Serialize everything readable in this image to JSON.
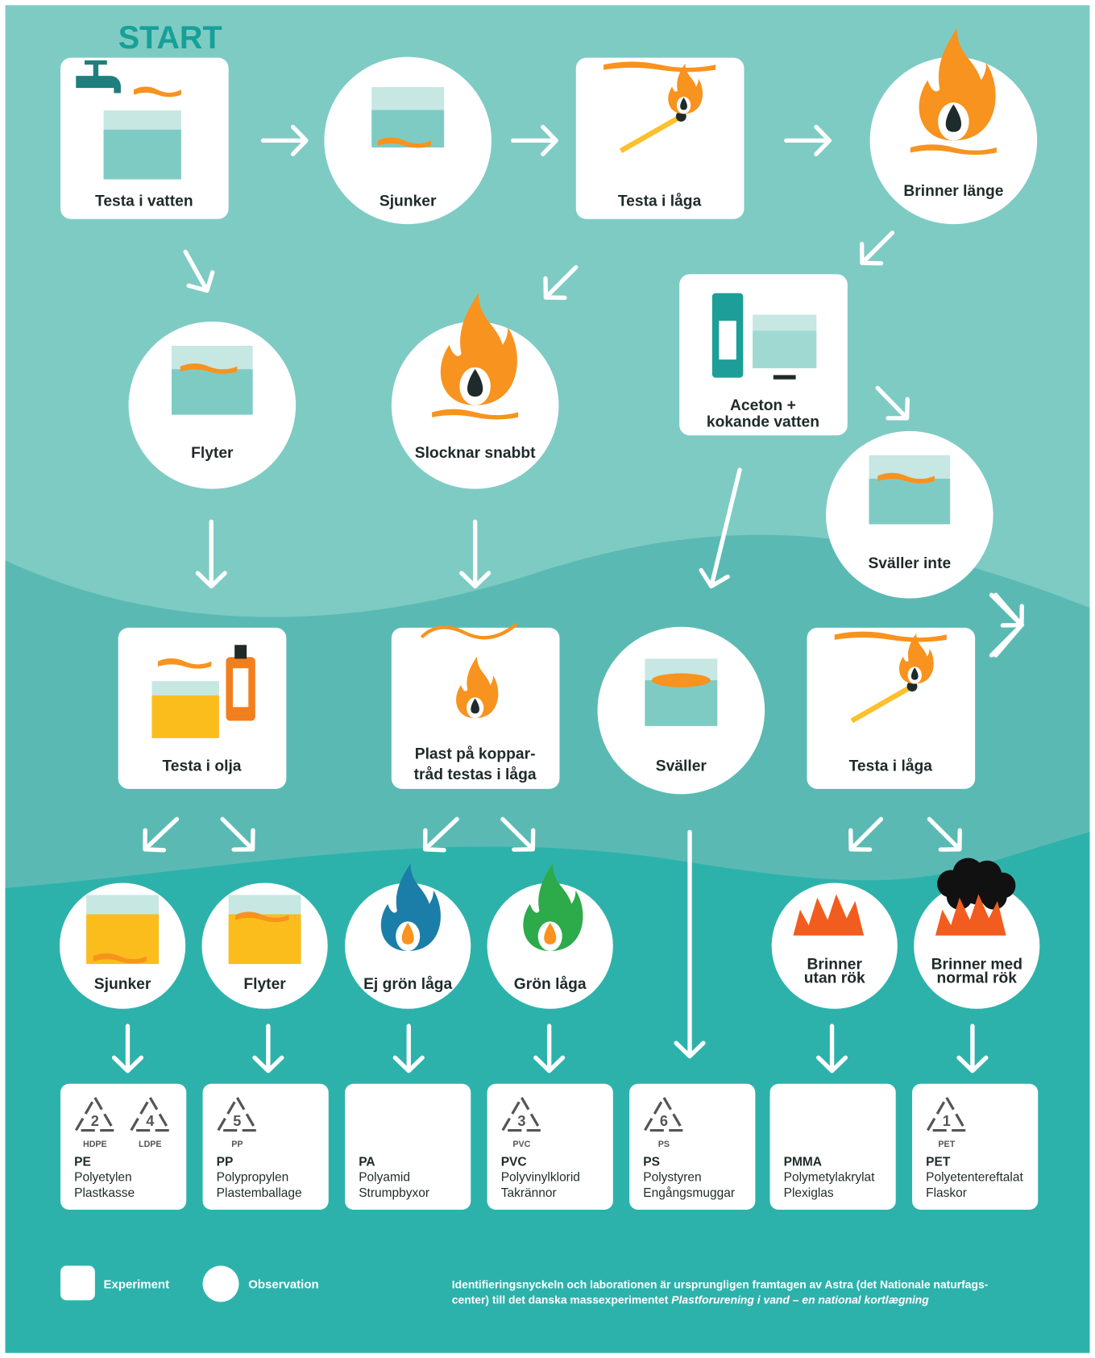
{
  "start": "START",
  "nodes": [
    {
      "label": [
        "Testa i vatten"
      ]
    },
    {
      "label": [
        "Sjunker"
      ]
    },
    {
      "label": [
        "Testa i låga"
      ]
    },
    {
      "label": [
        "Brinner länge"
      ]
    },
    {
      "label": [
        "Aceton +",
        "kokande vatten"
      ]
    },
    {
      "label": [
        "Flyter"
      ]
    },
    {
      "label": [
        "Slocknar snabbt"
      ]
    },
    {
      "label": [
        "Sväller inte"
      ]
    },
    {
      "label": [
        "Testa i olja"
      ]
    },
    {
      "label": [
        "Plast på koppar-",
        "tråd testas i låga"
      ]
    },
    {
      "label": [
        "Sväller"
      ]
    },
    {
      "label": [
        "Testa i låga"
      ]
    },
    {
      "label": [
        "Sjunker"
      ]
    },
    {
      "label": [
        "Flyter"
      ]
    },
    {
      "label": [
        "Ej grön låga"
      ]
    },
    {
      "label": [
        "Grön låga"
      ]
    },
    {
      "label": [
        "Brinner",
        "utan rök"
      ]
    },
    {
      "label": [
        "Brinner med",
        "normal rök"
      ]
    }
  ],
  "results": [
    {
      "codes": [
        {
          "num": "2",
          "label": "HDPE"
        },
        {
          "num": "4",
          "label": "LDPE"
        }
      ],
      "abbr": "PE",
      "name": "Polyetylen",
      "example": "Plastkasse"
    },
    {
      "codes": [
        {
          "num": "5",
          "label": "PP"
        }
      ],
      "abbr": "PP",
      "name": "Polypropylen",
      "example": "Plastemballage"
    },
    {
      "codes": [],
      "abbr": "PA",
      "name": "Polyamid",
      "example": "Strumpbyxor"
    },
    {
      "codes": [
        {
          "num": "3",
          "label": "PVC"
        }
      ],
      "abbr": "PVC",
      "name": "Polyvinylklorid",
      "example": "Takrännor"
    },
    {
      "codes": [
        {
          "num": "6",
          "label": "PS"
        }
      ],
      "abbr": "PS",
      "name": "Polystyren",
      "example": "Engångsmuggar"
    },
    {
      "codes": [],
      "abbr": "PMMA",
      "name": "Polymetylakrylat",
      "example": "Plexiglas"
    },
    {
      "codes": [
        {
          "num": "1",
          "label": "PET"
        }
      ],
      "abbr": "PET",
      "name": "Polyetentereftalat",
      "example": "Flaskor"
    }
  ],
  "legend": {
    "experiment": "Experiment",
    "observation": "Observation"
  },
  "credit": {
    "line1": "Identifieringsnyckeln och laborationen är ursprungligen framtagen av Astra (det Nationale naturfags-",
    "line2": "center) till det danska massexperimentet ",
    "italic": "Plastforurening i vand – en national kortlægning"
  }
}
